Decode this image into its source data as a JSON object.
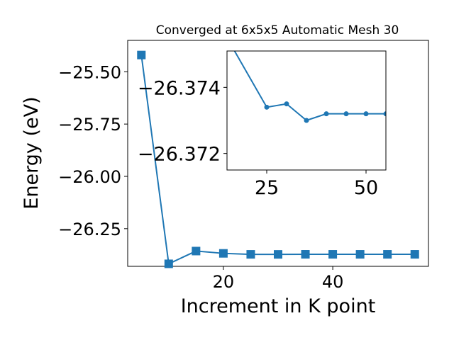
{
  "chart_data": [
    {
      "type": "line",
      "title": "Converged at 6x5x5 Automatic Mesh 30",
      "xlabel": "Increment in K point",
      "ylabel": "Energy (eV)",
      "xlim": [
        2.5,
        57.5
      ],
      "ylim": [
        -26.43,
        -25.35
      ],
      "xticks": [
        20,
        40
      ],
      "xtick_labels": [
        "20",
        "40"
      ],
      "yticks": [
        -25.5,
        -25.75,
        -26.0,
        -26.25
      ],
      "ytick_labels": [
        "−25.50",
        "−25.75",
        "−26.00",
        "−26.25"
      ],
      "grid": false,
      "marker": "square",
      "color": "#1f77b4",
      "x": [
        5,
        10,
        15,
        20,
        25,
        30,
        35,
        40,
        45,
        50,
        55
      ],
      "y": [
        -25.42,
        -26.418,
        -26.357,
        -26.368,
        -26.3727,
        -26.3729,
        -26.3725,
        -26.3726,
        -26.3726,
        -26.3726,
        -26.3726
      ]
    },
    {
      "type": "line",
      "title": "",
      "xlabel": "",
      "ylabel": "",
      "inset": true,
      "xlim": [
        15,
        55
      ],
      "ylim": [
        -26.3715,
        -26.3751
      ],
      "xticks": [
        25,
        50
      ],
      "xtick_labels": [
        "25",
        "50"
      ],
      "yticks": [
        -26.374,
        -26.372
      ],
      "ytick_labels": [
        "−26.374",
        "−26.372"
      ],
      "grid": false,
      "marker": "circle",
      "color": "#1f77b4",
      "x": [
        15,
        25,
        30,
        35,
        40,
        45,
        50,
        55
      ],
      "y": [
        -26.3755,
        -26.3734,
        -26.3735,
        -26.373,
        -26.3732,
        -26.3732,
        -26.3732,
        -26.3732
      ]
    }
  ]
}
